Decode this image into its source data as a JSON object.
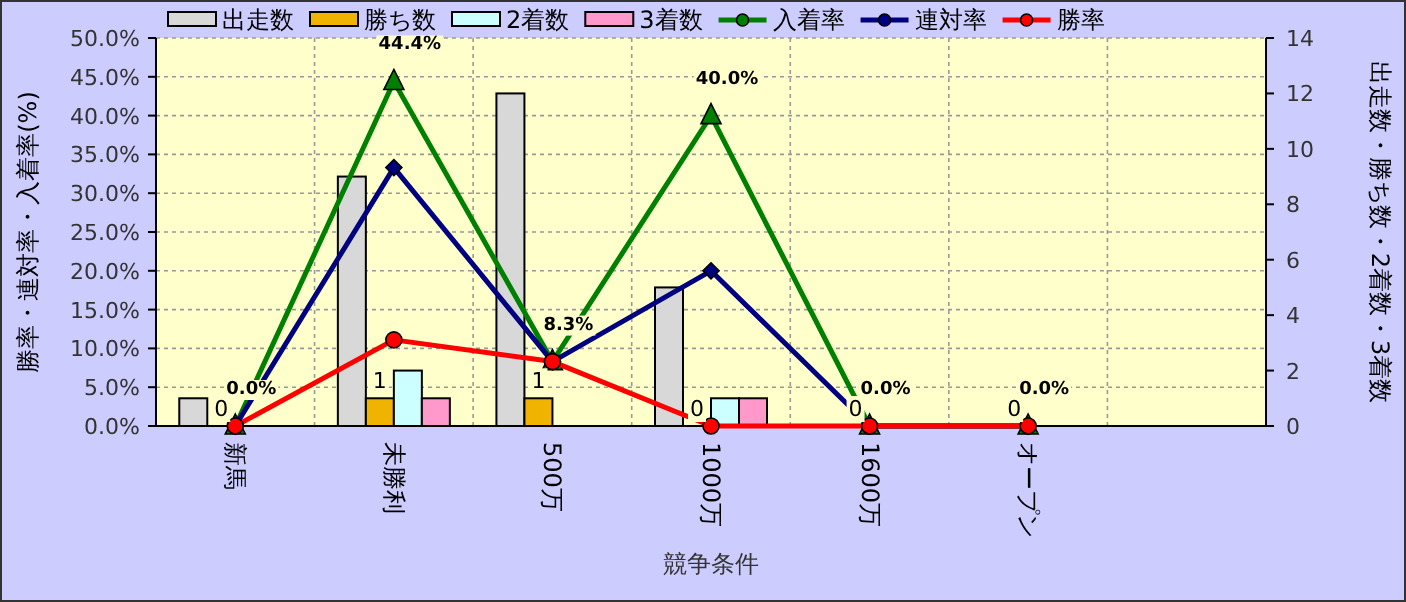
{
  "chart_data": {
    "type": "bar",
    "xlabel": "競争条件",
    "ylabel": "勝率・連対率・入着率(%)",
    "y2label": "出走数・勝ち数・2着数・3着数",
    "categories": [
      "新馬",
      "未勝利",
      "500万",
      "1000万",
      "1600万",
      "オープン",
      null
    ],
    "series": [
      {
        "name": "出走数",
        "axis": "y2",
        "color": "#d8d8d8",
        "values": [
          1,
          9,
          12,
          5,
          0,
          0,
          null
        ]
      },
      {
        "name": "勝ち数",
        "axis": "y2",
        "color": "#f0b400",
        "values": [
          0,
          1,
          1,
          0,
          0,
          0,
          null
        ],
        "value_labels": [
          "0",
          "1",
          "1",
          "0",
          "0",
          "0",
          null
        ]
      },
      {
        "name": "2着数",
        "axis": "y2",
        "color": "#ccffff",
        "values": [
          0,
          2,
          0,
          1,
          0,
          0,
          null
        ]
      },
      {
        "name": "3着数",
        "axis": "y2",
        "color": "#ff99cc",
        "values": [
          0,
          1,
          0,
          1,
          0,
          0,
          null
        ]
      },
      {
        "name": "入着率",
        "type": "line",
        "color": "#008000",
        "marker": "triangle",
        "values": [
          0,
          44.4,
          8.3,
          40.0,
          0,
          0,
          null
        ],
        "value_labels": [
          "0.0%",
          "44.4%",
          "8.3%",
          "40.0%",
          "0.0%",
          "0.0%",
          null
        ]
      },
      {
        "name": "連対率",
        "type": "line",
        "color": "#000080",
        "marker": "diamond",
        "values": [
          0,
          33.3,
          8.3,
          20.0,
          0,
          0,
          null
        ]
      },
      {
        "name": "勝率",
        "type": "line",
        "color": "#ff0000",
        "marker": "circle",
        "values": [
          0,
          11.1,
          8.3,
          0,
          0,
          0,
          null
        ]
      }
    ],
    "ylim": [
      0,
      50
    ],
    "yticks": [
      {
        "value": 0,
        "label": "0.0%"
      },
      {
        "value": 5,
        "label": "5.0%"
      },
      {
        "value": 10,
        "label": "10.0%"
      },
      {
        "value": 15,
        "label": "15.0%"
      },
      {
        "value": 20,
        "label": "20.0%"
      },
      {
        "value": 25,
        "label": "25.0%"
      },
      {
        "value": 30,
        "label": "30.0%"
      },
      {
        "value": 35,
        "label": "35.0%"
      },
      {
        "value": 40,
        "label": "40.0%"
      },
      {
        "value": 45,
        "label": "45.0%"
      },
      {
        "value": 50,
        "label": "50.0%"
      }
    ],
    "y2lim": [
      0,
      14
    ],
    "y2ticks": [
      0,
      2,
      4,
      6,
      8,
      10,
      12,
      14
    ],
    "grid": true,
    "legend": "top"
  }
}
